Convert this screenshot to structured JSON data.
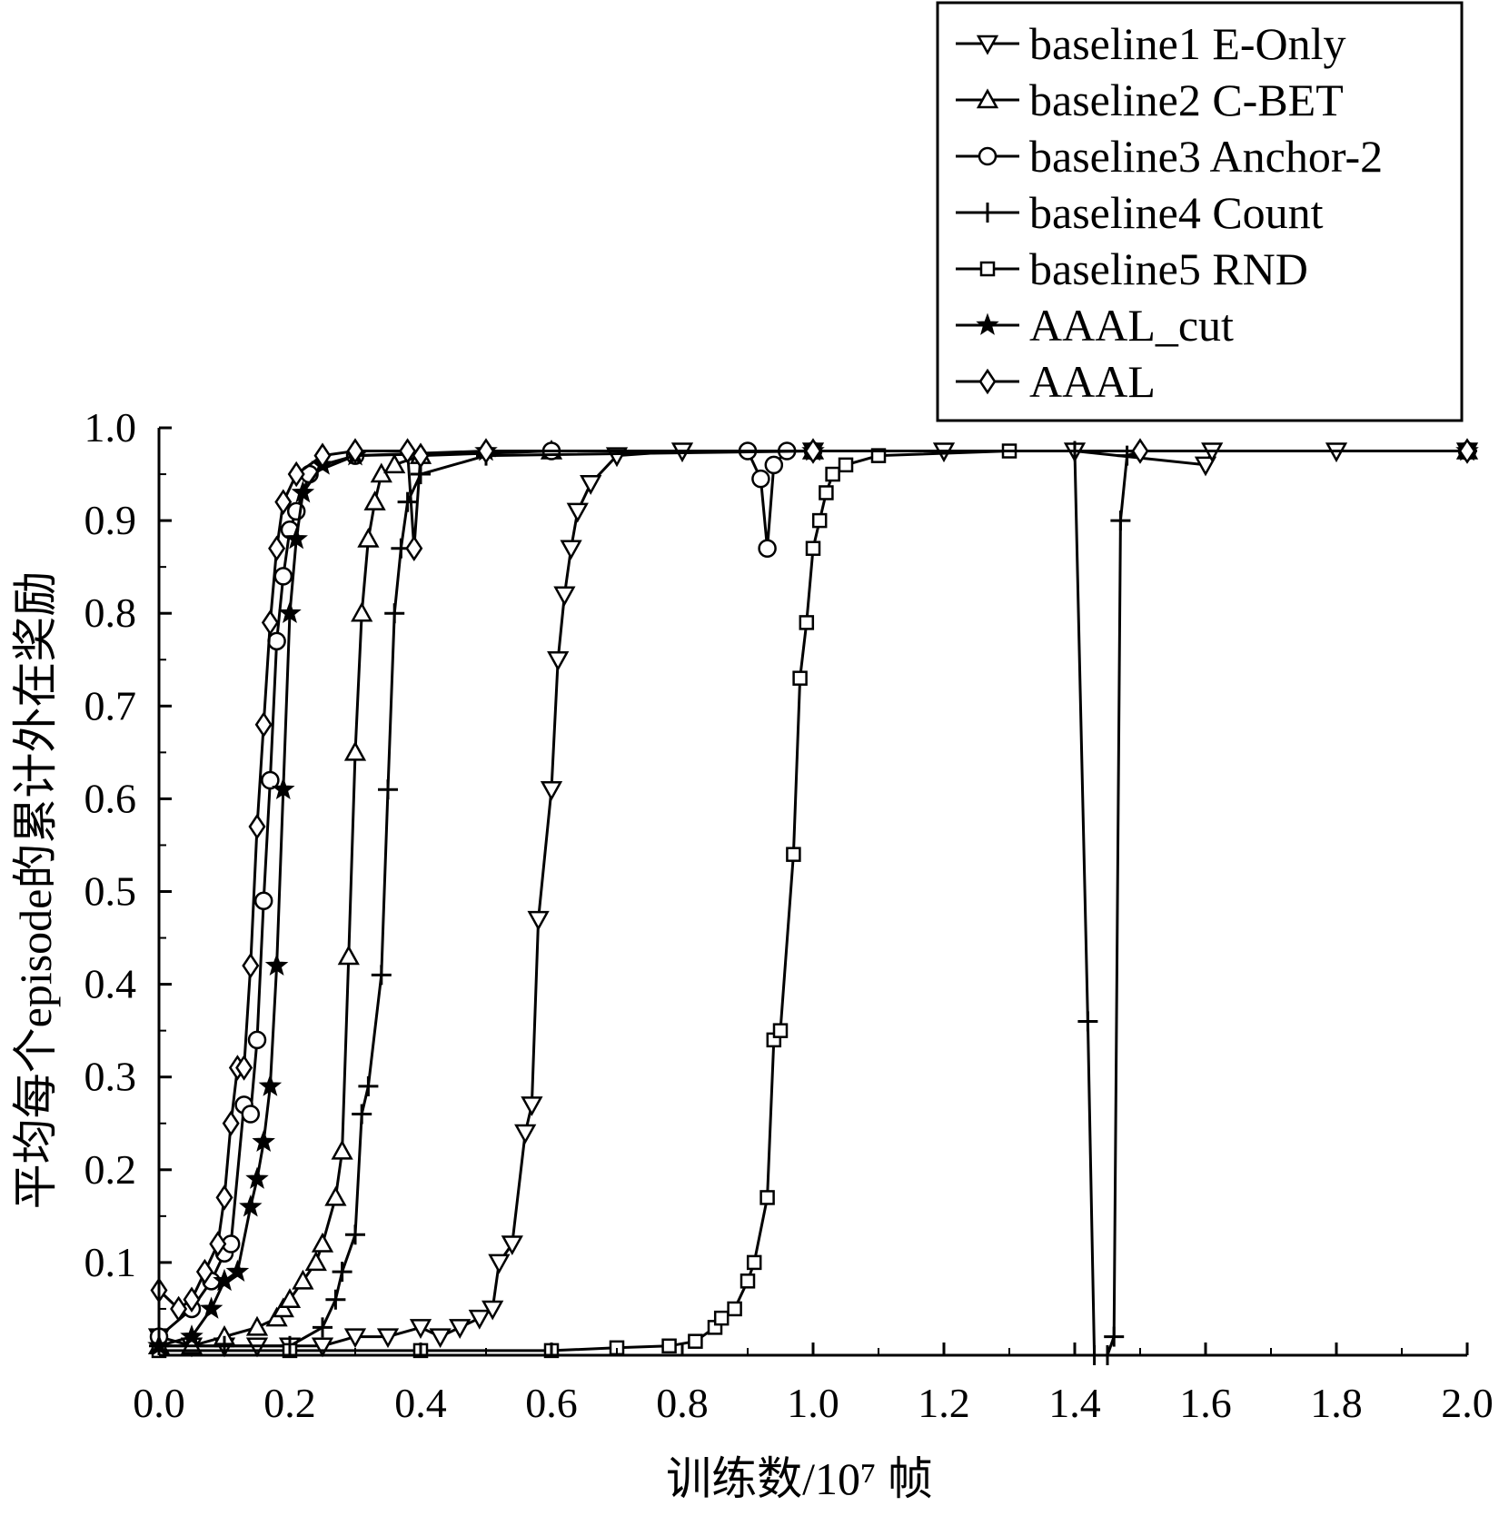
{
  "chart_data": {
    "type": "line",
    "xlabel": "训练数/10⁷ 帧",
    "ylabel": "平均每个episode的累计外在奖励",
    "xlim": [
      0.0,
      2.0
    ],
    "ylim": [
      0.0,
      1.0
    ],
    "x_ticks": [
      "0.0",
      "0.2",
      "0.4",
      "0.6",
      "0.8",
      "1.0",
      "1.2",
      "1.4",
      "1.6",
      "1.8",
      "2.0"
    ],
    "y_ticks": [
      "0.1",
      "0.2",
      "0.3",
      "0.4",
      "0.5",
      "0.6",
      "0.7",
      "0.8",
      "0.9",
      "1.0"
    ],
    "legend_position": "top-right",
    "grid": false,
    "series": [
      {
        "name": "baseline1 E-Only",
        "marker": "triangle-down",
        "points": [
          [
            0,
            0.02
          ],
          [
            0.05,
            0.01
          ],
          [
            0.1,
            0.01
          ],
          [
            0.15,
            0.01
          ],
          [
            0.2,
            0.01
          ],
          [
            0.25,
            0.01
          ],
          [
            0.3,
            0.02
          ],
          [
            0.35,
            0.02
          ],
          [
            0.4,
            0.03
          ],
          [
            0.43,
            0.02
          ],
          [
            0.46,
            0.03
          ],
          [
            0.49,
            0.04
          ],
          [
            0.51,
            0.05
          ],
          [
            0.52,
            0.1
          ],
          [
            0.54,
            0.12
          ],
          [
            0.56,
            0.24
          ],
          [
            0.57,
            0.27
          ],
          [
            0.58,
            0.47
          ],
          [
            0.6,
            0.61
          ],
          [
            0.61,
            0.75
          ],
          [
            0.62,
            0.82
          ],
          [
            0.63,
            0.87
          ],
          [
            0.64,
            0.91
          ],
          [
            0.66,
            0.94
          ],
          [
            0.7,
            0.97
          ],
          [
            0.8,
            0.975
          ],
          [
            1.0,
            0.975
          ],
          [
            1.2,
            0.975
          ],
          [
            1.4,
            0.975
          ],
          [
            1.6,
            0.96
          ],
          [
            1.61,
            0.975
          ],
          [
            1.8,
            0.975
          ],
          [
            2.0,
            0.975
          ]
        ]
      },
      {
        "name": "baseline2 C-BET",
        "marker": "triangle-up",
        "points": [
          [
            0,
            0.01
          ],
          [
            0.05,
            0.01
          ],
          [
            0.1,
            0.02
          ],
          [
            0.15,
            0.03
          ],
          [
            0.18,
            0.04
          ],
          [
            0.19,
            0.05
          ],
          [
            0.2,
            0.06
          ],
          [
            0.22,
            0.08
          ],
          [
            0.24,
            0.1
          ],
          [
            0.25,
            0.12
          ],
          [
            0.27,
            0.17
          ],
          [
            0.28,
            0.22
          ],
          [
            0.29,
            0.43
          ],
          [
            0.3,
            0.65
          ],
          [
            0.31,
            0.8
          ],
          [
            0.32,
            0.88
          ],
          [
            0.33,
            0.92
          ],
          [
            0.34,
            0.95
          ],
          [
            0.36,
            0.96
          ],
          [
            0.4,
            0.97
          ],
          [
            0.6,
            0.975
          ],
          [
            1.0,
            0.975
          ],
          [
            2.0,
            0.975
          ]
        ]
      },
      {
        "name": "baseline3 Anchor-2",
        "marker": "circle",
        "points": [
          [
            0,
            0.02
          ],
          [
            0.05,
            0.05
          ],
          [
            0.08,
            0.08
          ],
          [
            0.1,
            0.11
          ],
          [
            0.11,
            0.12
          ],
          [
            0.13,
            0.27
          ],
          [
            0.14,
            0.26
          ],
          [
            0.15,
            0.34
          ],
          [
            0.16,
            0.49
          ],
          [
            0.17,
            0.62
          ],
          [
            0.18,
            0.77
          ],
          [
            0.19,
            0.84
          ],
          [
            0.2,
            0.89
          ],
          [
            0.21,
            0.91
          ],
          [
            0.23,
            0.95
          ],
          [
            0.3,
            0.97
          ],
          [
            0.6,
            0.975
          ],
          [
            0.9,
            0.975
          ],
          [
            0.92,
            0.945
          ],
          [
            0.93,
            0.87
          ],
          [
            0.94,
            0.96
          ],
          [
            0.96,
            0.975
          ],
          [
            1.0,
            0.975
          ],
          [
            2.0,
            0.975
          ]
        ]
      },
      {
        "name": "baseline4 Count",
        "marker": "plus",
        "points": [
          [
            0,
            0.01
          ],
          [
            0.1,
            0.01
          ],
          [
            0.2,
            0.01
          ],
          [
            0.25,
            0.03
          ],
          [
            0.27,
            0.06
          ],
          [
            0.28,
            0.09
          ],
          [
            0.3,
            0.13
          ],
          [
            0.31,
            0.26
          ],
          [
            0.32,
            0.29
          ],
          [
            0.34,
            0.41
          ],
          [
            0.35,
            0.61
          ],
          [
            0.36,
            0.8
          ],
          [
            0.37,
            0.87
          ],
          [
            0.38,
            0.92
          ],
          [
            0.4,
            0.95
          ],
          [
            0.5,
            0.97
          ],
          [
            1.0,
            0.975
          ],
          [
            1.4,
            0.975
          ],
          [
            1.42,
            0.36
          ],
          [
            1.43,
            0.0
          ],
          [
            1.45,
            0.0
          ],
          [
            1.46,
            0.02
          ],
          [
            1.47,
            0.9
          ],
          [
            1.48,
            0.97
          ],
          [
            1.5,
            0.975
          ],
          [
            2.0,
            0.975
          ]
        ]
      },
      {
        "name": "baseline5 RND",
        "marker": "square",
        "points": [
          [
            0,
            0.005
          ],
          [
            0.2,
            0.005
          ],
          [
            0.4,
            0.005
          ],
          [
            0.6,
            0.005
          ],
          [
            0.7,
            0.008
          ],
          [
            0.78,
            0.01
          ],
          [
            0.82,
            0.015
          ],
          [
            0.85,
            0.03
          ],
          [
            0.86,
            0.04
          ],
          [
            0.88,
            0.05
          ],
          [
            0.9,
            0.08
          ],
          [
            0.91,
            0.1
          ],
          [
            0.93,
            0.17
          ],
          [
            0.94,
            0.34
          ],
          [
            0.95,
            0.35
          ],
          [
            0.97,
            0.54
          ],
          [
            0.98,
            0.73
          ],
          [
            0.99,
            0.79
          ],
          [
            1.0,
            0.87
          ],
          [
            1.01,
            0.9
          ],
          [
            1.02,
            0.93
          ],
          [
            1.03,
            0.95
          ],
          [
            1.05,
            0.96
          ],
          [
            1.1,
            0.97
          ],
          [
            1.3,
            0.975
          ],
          [
            2.0,
            0.975
          ]
        ]
      },
      {
        "name": "AAAL_cut",
        "marker": "star",
        "points": [
          [
            0,
            0.01
          ],
          [
            0.05,
            0.02
          ],
          [
            0.08,
            0.05
          ],
          [
            0.1,
            0.08
          ],
          [
            0.12,
            0.09
          ],
          [
            0.14,
            0.16
          ],
          [
            0.15,
            0.19
          ],
          [
            0.16,
            0.23
          ],
          [
            0.17,
            0.29
          ],
          [
            0.18,
            0.42
          ],
          [
            0.19,
            0.61
          ],
          [
            0.2,
            0.8
          ],
          [
            0.21,
            0.88
          ],
          [
            0.22,
            0.93
          ],
          [
            0.25,
            0.96
          ],
          [
            0.3,
            0.97
          ],
          [
            0.5,
            0.975
          ],
          [
            1.0,
            0.975
          ],
          [
            2.0,
            0.975
          ]
        ]
      },
      {
        "name": "AAAL",
        "marker": "diamond",
        "points": [
          [
            0,
            0.07
          ],
          [
            0.03,
            0.05
          ],
          [
            0.05,
            0.06
          ],
          [
            0.07,
            0.09
          ],
          [
            0.09,
            0.12
          ],
          [
            0.1,
            0.17
          ],
          [
            0.11,
            0.25
          ],
          [
            0.12,
            0.31
          ],
          [
            0.13,
            0.31
          ],
          [
            0.14,
            0.42
          ],
          [
            0.15,
            0.57
          ],
          [
            0.16,
            0.68
          ],
          [
            0.17,
            0.79
          ],
          [
            0.18,
            0.87
          ],
          [
            0.19,
            0.92
          ],
          [
            0.21,
            0.95
          ],
          [
            0.25,
            0.97
          ],
          [
            0.3,
            0.975
          ],
          [
            0.38,
            0.975
          ],
          [
            0.39,
            0.87
          ],
          [
            0.4,
            0.97
          ],
          [
            0.5,
            0.975
          ],
          [
            1.0,
            0.975
          ],
          [
            1.5,
            0.975
          ],
          [
            2.0,
            0.975
          ]
        ]
      }
    ]
  }
}
